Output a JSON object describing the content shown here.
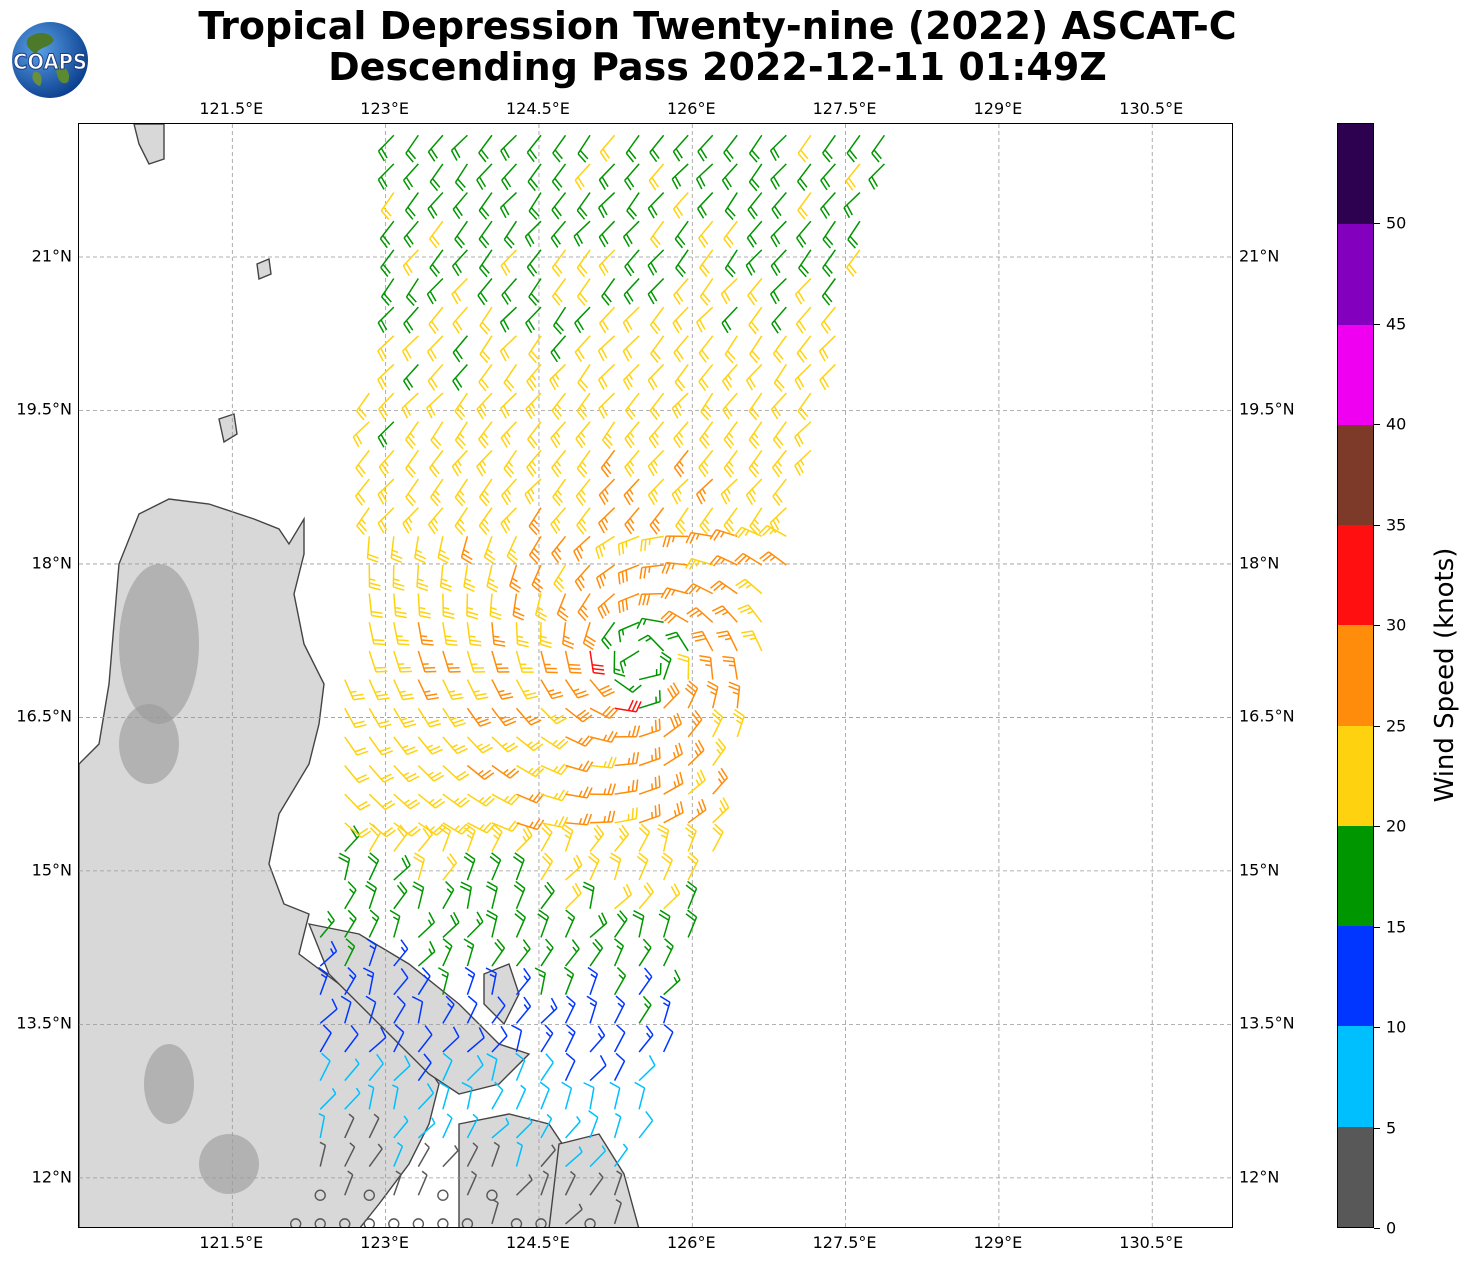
{
  "title": {
    "line1": "Tropical Depression Twenty-nine (2022) ASCAT-C",
    "line2": "Descending Pass 2022-12-11 01:49Z"
  },
  "logo": {
    "text": "COAPS",
    "icon": "globe-icon"
  },
  "map": {
    "lon_range": [
      120.0,
      131.3
    ],
    "lat_range": [
      11.5,
      22.3
    ],
    "lon_ticks": [
      {
        "value": 121.5,
        "label": "121.5°E"
      },
      {
        "value": 123.0,
        "label": "123°E"
      },
      {
        "value": 124.5,
        "label": "124.5°E"
      },
      {
        "value": 126.0,
        "label": "126°E"
      },
      {
        "value": 127.5,
        "label": "127.5°E"
      },
      {
        "value": 129.0,
        "label": "129°E"
      },
      {
        "value": 130.5,
        "label": "130.5°E"
      }
    ],
    "lat_ticks": [
      {
        "value": 21.0,
        "label": "21°N"
      },
      {
        "value": 19.5,
        "label": "19.5°N"
      },
      {
        "value": 18.0,
        "label": "18°N"
      },
      {
        "value": 16.5,
        "label": "16.5°N"
      },
      {
        "value": 15.0,
        "label": "15°N"
      },
      {
        "value": 13.5,
        "label": "13.5°N"
      },
      {
        "value": 12.0,
        "label": "12°N"
      }
    ],
    "gridlines": true,
    "storm_center": {
      "lon": 125.5,
      "lat": 17.05
    },
    "land_color": "#d8d8d8",
    "coast_color": "#444444"
  },
  "colorbar": {
    "label": "Wind Speed (knots)",
    "ticks": [
      0,
      5,
      10,
      15,
      20,
      25,
      30,
      35,
      40,
      45,
      50
    ],
    "bins": [
      {
        "min": 0,
        "max": 5,
        "color": "#585858"
      },
      {
        "min": 5,
        "max": 10,
        "color": "#00bfff"
      },
      {
        "min": 10,
        "max": 15,
        "color": "#0036ff"
      },
      {
        "min": 15,
        "max": 20,
        "color": "#009600"
      },
      {
        "min": 20,
        "max": 25,
        "color": "#ffd20f"
      },
      {
        "min": 25,
        "max": 30,
        "color": "#ff8c0a"
      },
      {
        "min": 30,
        "max": 35,
        "color": "#ff0f0f"
      },
      {
        "min": 35,
        "max": 40,
        "color": "#7d3a28"
      },
      {
        "min": 40,
        "max": 45,
        "color": "#f000f0"
      },
      {
        "min": 45,
        "max": 50,
        "color": "#8200be"
      },
      {
        "min": 50,
        "max": 55,
        "color": "#2d0050"
      }
    ]
  }
}
